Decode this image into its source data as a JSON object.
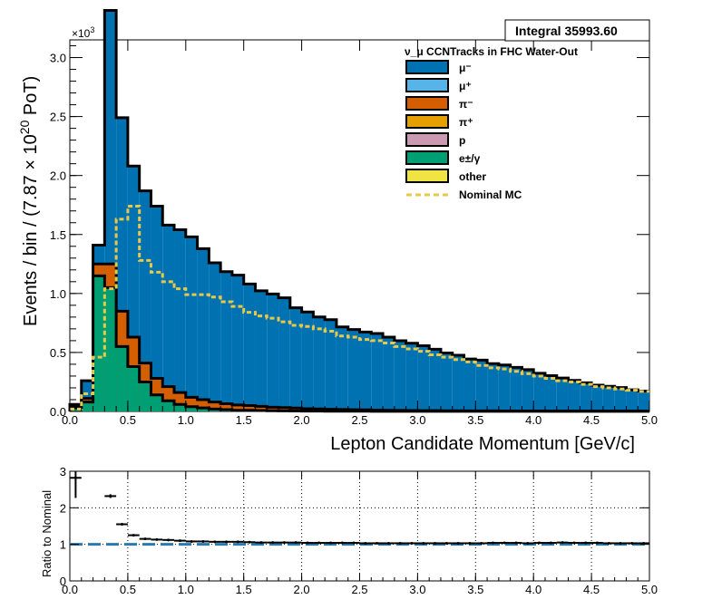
{
  "chart_data": [
    {
      "type": "area",
      "stacked_histogram": true,
      "title": "",
      "integral_label": "Integral 35993.60",
      "legend_header": "ν_μ CCNTracks in FHC Water-Out",
      "xlabel": "Lepton Candidate Momentum [GeV/c]",
      "ylabel": "Events / bin / (7.87 × 10^20 PoT)",
      "y_multiplier": "×10^3",
      "xlim": [
        0,
        5.0
      ],
      "ylim": [
        0,
        3.15
      ],
      "x_ticks": [
        "0.0",
        "0.5",
        "1.0",
        "1.5",
        "2.0",
        "2.5",
        "3.0",
        "3.5",
        "4.0",
        "4.5",
        "5.0"
      ],
      "y_ticks": [
        "0.0",
        "0.5",
        "1.0",
        "1.5",
        "2.0",
        "2.5",
        "3.0"
      ],
      "grid": false,
      "legend_position": "top-right",
      "bin_width": 0.1,
      "x": [
        0.05,
        0.15,
        0.25,
        0.35,
        0.45,
        0.55,
        0.65,
        0.75,
        0.85,
        0.95,
        1.05,
        1.15,
        1.25,
        1.35,
        1.45,
        1.55,
        1.65,
        1.75,
        1.85,
        1.95,
        2.05,
        2.15,
        2.25,
        2.35,
        2.45,
        2.55,
        2.65,
        2.75,
        2.85,
        2.95,
        3.05,
        3.15,
        3.25,
        3.35,
        3.45,
        3.55,
        3.65,
        3.75,
        3.85,
        3.95,
        4.05,
        4.15,
        4.25,
        4.35,
        4.45,
        4.55,
        4.65,
        4.75,
        4.85,
        4.95
      ],
      "series": [
        {
          "name": "e±/γ",
          "color": "#009e73",
          "values": [
            0.03,
            0.08,
            1.15,
            1.05,
            0.55,
            0.38,
            0.25,
            0.14,
            0.09,
            0.06,
            0.04,
            0.03,
            0.02,
            0.015,
            0.01,
            0.01,
            0.008,
            0.006,
            0.005,
            0.004,
            0.003,
            0.003,
            0.002,
            0.002,
            0.002,
            0.002,
            0.001,
            0.001,
            0.001,
            0.001,
            0.001,
            0.001,
            0.001,
            0.001,
            0.001,
            0.001,
            0.001,
            0.001,
            0.001,
            0.001,
            0.001,
            0.001,
            0.001,
            0.001,
            0.001,
            0.001,
            0.001,
            0.001,
            0.001,
            0.001
          ]
        },
        {
          "name": "π⁻",
          "color": "#d55e00",
          "values": [
            0.01,
            0.03,
            0.1,
            0.2,
            0.3,
            0.25,
            0.16,
            0.14,
            0.12,
            0.1,
            0.08,
            0.07,
            0.06,
            0.05,
            0.045,
            0.04,
            0.035,
            0.03,
            0.028,
            0.025,
            0.02,
            0.018,
            0.016,
            0.014,
            0.012,
            0.011,
            0.01,
            0.009,
            0.008,
            0.007,
            0.006,
            0.006,
            0.005,
            0.005,
            0.004,
            0.004,
            0.004,
            0.003,
            0.003,
            0.003,
            0.003,
            0.002,
            0.002,
            0.002,
            0.002,
            0.002,
            0.002,
            0.002,
            0.002,
            0.002
          ]
        },
        {
          "name": "μ⁻",
          "color": "#0072b2",
          "values": [
            0.02,
            0.15,
            0.16,
            2.15,
            1.64,
            1.45,
            1.46,
            1.46,
            1.37,
            1.38,
            1.36,
            1.28,
            1.18,
            1.12,
            1.1,
            1.03,
            0.98,
            0.96,
            0.93,
            0.85,
            0.82,
            0.78,
            0.76,
            0.7,
            0.68,
            0.66,
            0.65,
            0.62,
            0.59,
            0.57,
            0.55,
            0.52,
            0.49,
            0.47,
            0.44,
            0.43,
            0.4,
            0.39,
            0.37,
            0.35,
            0.32,
            0.3,
            0.28,
            0.26,
            0.24,
            0.22,
            0.21,
            0.2,
            0.18,
            0.17
          ]
        }
      ],
      "nominal_mc": {
        "name": "Nominal MC",
        "color": "#e6c84a",
        "values": [
          0.02,
          0.15,
          0.46,
          1.04,
          1.63,
          1.74,
          1.28,
          1.18,
          1.1,
          1.04,
          0.99,
          0.99,
          0.97,
          0.93,
          0.89,
          0.84,
          0.81,
          0.79,
          0.76,
          0.73,
          0.72,
          0.7,
          0.68,
          0.64,
          0.63,
          0.61,
          0.6,
          0.58,
          0.55,
          0.53,
          0.51,
          0.48,
          0.46,
          0.44,
          0.42,
          0.39,
          0.37,
          0.36,
          0.34,
          0.32,
          0.3,
          0.28,
          0.26,
          0.25,
          0.23,
          0.21,
          0.2,
          0.19,
          0.18,
          0.17
        ]
      },
      "legend": [
        {
          "name": "μ⁻",
          "color": "#0072b2",
          "kind": "box"
        },
        {
          "name": "μ⁺",
          "color": "#56b4e9",
          "kind": "box"
        },
        {
          "name": "π⁻",
          "color": "#d55e00",
          "kind": "box"
        },
        {
          "name": "π⁺",
          "color": "#e69f00",
          "kind": "box"
        },
        {
          "name": "p",
          "color": "#cc99b3",
          "kind": "box"
        },
        {
          "name": "e±/γ",
          "color": "#009e73",
          "kind": "box"
        },
        {
          "name": "other",
          "color": "#f0e442",
          "kind": "box"
        },
        {
          "name": "Nominal MC",
          "color": "#e6c84a",
          "kind": "dashed"
        }
      ]
    },
    {
      "type": "scatter",
      "title": "",
      "xlabel": "",
      "ylabel": "Ratio to Nominal",
      "xlim": [
        0,
        5.0
      ],
      "ylim": [
        0,
        3.0
      ],
      "x_ticks": [
        "0.0",
        "0.5",
        "1.0",
        "1.5",
        "2.0",
        "2.5",
        "3.0",
        "3.5",
        "4.0",
        "4.5",
        "5.0"
      ],
      "y_ticks": [
        "0",
        "1",
        "2",
        "3"
      ],
      "grid": true,
      "reference_line": {
        "y": 1.0,
        "color": "#2a7ab0"
      },
      "x": [
        0.05,
        0.35,
        0.45,
        0.55,
        0.65,
        0.75,
        0.85,
        0.95,
        1.05,
        1.15,
        1.25,
        1.35,
        1.45,
        1.55,
        1.65,
        1.75,
        1.85,
        1.95,
        2.05,
        2.15,
        2.25,
        2.35,
        2.45,
        2.55,
        2.65,
        2.75,
        2.85,
        2.95,
        3.05,
        3.15,
        3.25,
        3.35,
        3.45,
        3.55,
        3.65,
        3.75,
        3.85,
        3.95,
        4.05,
        4.15,
        4.25,
        4.35,
        4.45,
        4.55,
        4.65,
        4.75,
        4.85,
        4.95
      ],
      "values": [
        2.82,
        2.32,
        1.55,
        1.25,
        1.15,
        1.13,
        1.12,
        1.1,
        1.08,
        1.08,
        1.07,
        1.07,
        1.07,
        1.06,
        1.05,
        1.05,
        1.05,
        1.05,
        1.04,
        1.04,
        1.04,
        1.04,
        1.04,
        1.03,
        1.03,
        1.03,
        1.03,
        1.03,
        1.03,
        1.03,
        1.03,
        1.03,
        1.03,
        1.03,
        1.04,
        1.04,
        1.04,
        1.03,
        1.04,
        1.04,
        1.05,
        1.04,
        1.04,
        1.04,
        1.03,
        1.03,
        1.03,
        1.03
      ],
      "errors": [
        0.55,
        0.05,
        0.03,
        0.02,
        0.01,
        0.01,
        0.01,
        0.01,
        0.01,
        0.01,
        0.01,
        0.01,
        0.01,
        0.01,
        0.01,
        0.01,
        0.01,
        0.01,
        0.01,
        0.01,
        0.01,
        0.01,
        0.01,
        0.01,
        0.01,
        0.01,
        0.01,
        0.01,
        0.01,
        0.01,
        0.01,
        0.01,
        0.01,
        0.01,
        0.01,
        0.01,
        0.01,
        0.01,
        0.01,
        0.01,
        0.01,
        0.01,
        0.01,
        0.01,
        0.01,
        0.01,
        0.01,
        0.01
      ]
    }
  ]
}
